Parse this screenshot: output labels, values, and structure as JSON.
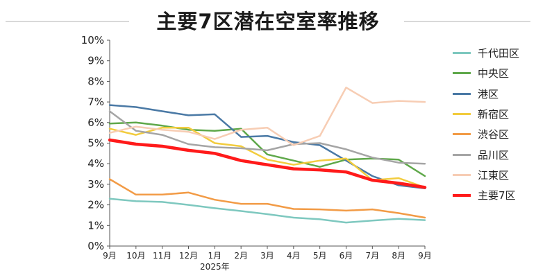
{
  "chart_data": {
    "type": "line",
    "title": "主要7区潜在空室率推移",
    "categories": [
      "9月",
      "10月",
      "11月",
      "12月",
      "1月",
      "2月",
      "3月",
      "4月",
      "5月",
      "6月",
      "7月",
      "8月",
      "9月"
    ],
    "x_sublabel": "2025年",
    "y_tick_labels": [
      "0%",
      "1%",
      "2%",
      "3%",
      "4%",
      "5%",
      "6%",
      "7%",
      "8%",
      "9%",
      "10%"
    ],
    "ylim": [
      0,
      10
    ],
    "y_unit": "%",
    "grid": false,
    "legend_position": "right",
    "series": [
      {
        "name": "千代田区",
        "color": "#7ec8bf",
        "width": 2.5,
        "values": [
          2.3,
          2.18,
          2.14,
          2.0,
          1.84,
          1.7,
          1.55,
          1.38,
          1.3,
          1.14,
          1.24,
          1.32,
          1.26
        ]
      },
      {
        "name": "中央区",
        "color": "#5fa84a",
        "width": 2.5,
        "values": [
          5.95,
          6.0,
          5.85,
          5.65,
          5.6,
          5.7,
          4.45,
          4.15,
          3.85,
          4.2,
          4.25,
          4.2,
          3.4
        ]
      },
      {
        "name": "港区",
        "color": "#4a79a5",
        "width": 2.5,
        "values": [
          6.85,
          6.75,
          6.55,
          6.35,
          6.4,
          5.3,
          5.35,
          5.05,
          4.9,
          4.15,
          3.4,
          2.95,
          2.8
        ]
      },
      {
        "name": "新宿区",
        "color": "#f2cc3e",
        "width": 2.5,
        "values": [
          5.7,
          5.4,
          5.75,
          5.75,
          5.0,
          4.85,
          4.2,
          3.95,
          4.15,
          4.25,
          3.2,
          3.3,
          2.85
        ]
      },
      {
        "name": "渋谷区",
        "color": "#f29b46",
        "width": 2.5,
        "values": [
          3.25,
          2.5,
          2.5,
          2.6,
          2.25,
          2.05,
          2.05,
          1.8,
          1.78,
          1.72,
          1.78,
          1.6,
          1.38
        ]
      },
      {
        "name": "品川区",
        "color": "#a5a5a5",
        "width": 2.5,
        "values": [
          6.55,
          5.6,
          5.4,
          4.95,
          4.8,
          4.75,
          4.65,
          4.95,
          5.0,
          4.7,
          4.3,
          4.05,
          4.0
        ]
      },
      {
        "name": "江東区",
        "color": "#f7cdb4",
        "width": 2.5,
        "values": [
          5.5,
          5.8,
          5.65,
          5.55,
          5.2,
          5.65,
          5.75,
          4.9,
          5.35,
          7.7,
          6.95,
          7.05,
          7.0
        ]
      },
      {
        "name": "主要7区",
        "color": "#ff1a1a",
        "width": 4.5,
        "values": [
          5.15,
          4.95,
          4.85,
          4.65,
          4.5,
          4.15,
          3.95,
          3.75,
          3.7,
          3.6,
          3.2,
          3.05,
          2.85
        ]
      }
    ]
  }
}
